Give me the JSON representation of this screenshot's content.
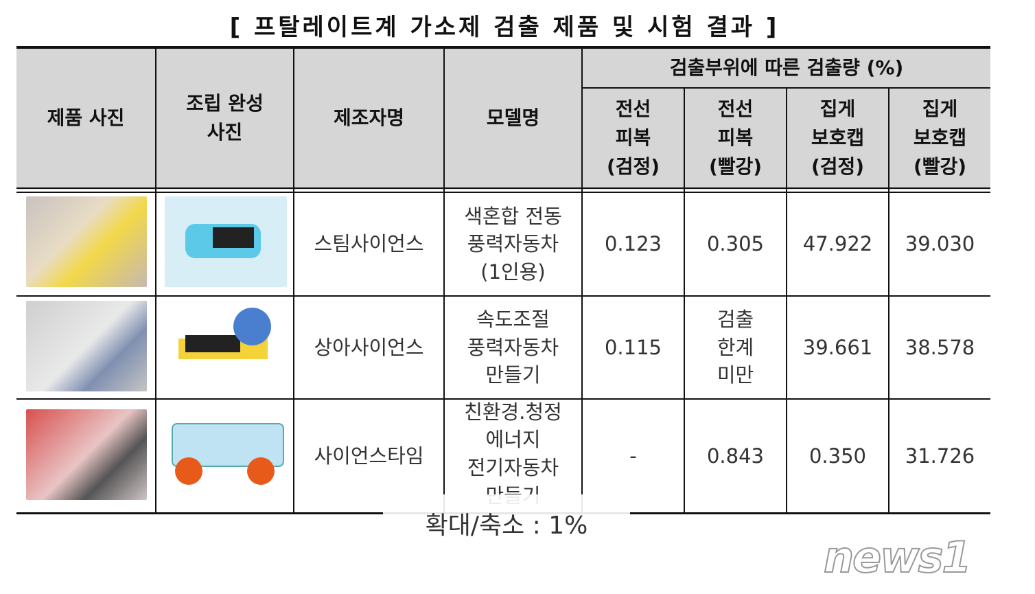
{
  "title": "[ 프탈레이트계 가소제 검출 제품 및 시험 결과 ]",
  "headers": {
    "product_photo": "제품 사진",
    "assembled_photo": "조립 완성\n사진",
    "manufacturer": "제조자명",
    "model": "모델명",
    "group": "검출부위에 따른 검출량 (%)",
    "sub": [
      "전선\n피복\n(검정)",
      "전선\n피복\n(빨강)",
      "집게\n보호캡\n(검정)",
      "집게\n보호캡\n(빨강)"
    ]
  },
  "rows": [
    {
      "manufacturer": "스팀사이언스",
      "model": "색혼합 전동\n풍력자동차\n(1인용)",
      "values": [
        "0.123",
        "0.305",
        "47.922",
        "39.030"
      ]
    },
    {
      "manufacturer": "상아사이언스",
      "model": "속도조절\n풍력자동차\n만들기",
      "values": [
        "0.115",
        "검출\n한계\n미만",
        "39.661",
        "38.578"
      ]
    },
    {
      "manufacturer": "사이언스타임",
      "model": "친환경.청정\n에너지\n전기자동차\n만들기",
      "values": [
        "-",
        "0.843",
        "0.350",
        "31.726"
      ]
    }
  ],
  "zoom_overlay": "확대/축소 : 1%",
  "logo": "news1"
}
